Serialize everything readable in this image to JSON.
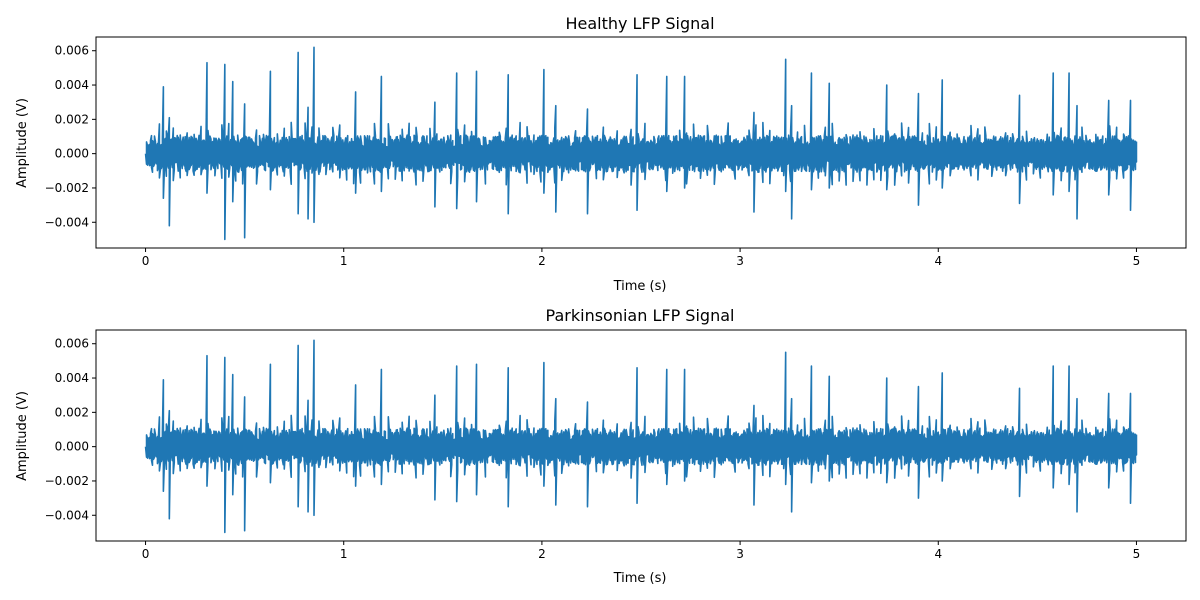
{
  "chart_data": [
    {
      "type": "line",
      "title": "Healthy LFP Signal",
      "xlabel": "Time (s)",
      "ylabel": "Amplitude (V)",
      "xlim": [
        -0.25,
        5.25
      ],
      "ylim": [
        -0.0055,
        0.0068
      ],
      "xticks": [
        0,
        1,
        2,
        3,
        4,
        5
      ],
      "xtick_labels": [
        "0",
        "1",
        "2",
        "3",
        "4",
        "5"
      ],
      "yticks": [
        -0.004,
        -0.002,
        0.0,
        0.002,
        0.004,
        0.006
      ],
      "ytick_labels": [
        "−0.004",
        "−0.002",
        "0.000",
        "0.002",
        "0.004",
        "0.006"
      ],
      "grid": false,
      "color": "#1f77b4",
      "duration_s": 5,
      "baseline_range": [
        -0.0012,
        0.0012
      ],
      "peaks": [
        {
          "t": 0.09,
          "max": 0.0039,
          "min": -0.0026
        },
        {
          "t": 0.12,
          "max": 0.0021,
          "min": -0.0042
        },
        {
          "t": 0.31,
          "max": 0.0053,
          "min": -0.0023
        },
        {
          "t": 0.4,
          "max": 0.0052,
          "min": -0.005
        },
        {
          "t": 0.44,
          "max": 0.0042,
          "min": -0.0028
        },
        {
          "t": 0.5,
          "max": 0.0029,
          "min": -0.0049
        },
        {
          "t": 0.63,
          "max": 0.0048,
          "min": -0.0021
        },
        {
          "t": 0.77,
          "max": 0.0059,
          "min": -0.0035
        },
        {
          "t": 0.82,
          "max": 0.0027,
          "min": -0.0038
        },
        {
          "t": 0.85,
          "max": 0.0062,
          "min": -0.004
        },
        {
          "t": 1.06,
          "max": 0.0036,
          "min": -0.0023
        },
        {
          "t": 1.19,
          "max": 0.0045,
          "min": -0.0022
        },
        {
          "t": 1.46,
          "max": 0.003,
          "min": -0.0031
        },
        {
          "t": 1.57,
          "max": 0.0047,
          "min": -0.0032
        },
        {
          "t": 1.67,
          "max": 0.0048,
          "min": -0.0028
        },
        {
          "t": 1.83,
          "max": 0.0046,
          "min": -0.0035
        },
        {
          "t": 2.01,
          "max": 0.0049,
          "min": -0.0023
        },
        {
          "t": 2.07,
          "max": 0.0028,
          "min": -0.0034
        },
        {
          "t": 2.23,
          "max": 0.0026,
          "min": -0.0035
        },
        {
          "t": 2.48,
          "max": 0.0046,
          "min": -0.0033
        },
        {
          "t": 2.63,
          "max": 0.0045,
          "min": -0.0022
        },
        {
          "t": 2.72,
          "max": 0.0045,
          "min": -0.002
        },
        {
          "t": 3.07,
          "max": 0.0024,
          "min": -0.0034
        },
        {
          "t": 3.23,
          "max": 0.0055,
          "min": -0.0022
        },
        {
          "t": 3.26,
          "max": 0.0028,
          "min": -0.0038
        },
        {
          "t": 3.36,
          "max": 0.0047,
          "min": -0.0021
        },
        {
          "t": 3.45,
          "max": 0.0041,
          "min": -0.002
        },
        {
          "t": 3.74,
          "max": 0.004,
          "min": -0.0021
        },
        {
          "t": 3.9,
          "max": 0.0035,
          "min": -0.003
        },
        {
          "t": 4.02,
          "max": 0.0043,
          "min": -0.002
        },
        {
          "t": 4.41,
          "max": 0.0034,
          "min": -0.0029
        },
        {
          "t": 4.58,
          "max": 0.0047,
          "min": -0.0024
        },
        {
          "t": 4.66,
          "max": 0.0047,
          "min": -0.0022
        },
        {
          "t": 4.7,
          "max": 0.0028,
          "min": -0.0038
        },
        {
          "t": 4.86,
          "max": 0.0031,
          "min": -0.0024
        },
        {
          "t": 4.97,
          "max": 0.0031,
          "min": -0.0033
        }
      ]
    },
    {
      "type": "line",
      "title": "Parkinsonian LFP Signal",
      "xlabel": "Time (s)",
      "ylabel": "Amplitude (V)",
      "xlim": [
        -0.25,
        5.25
      ],
      "ylim": [
        -0.0055,
        0.0068
      ],
      "xticks": [
        0,
        1,
        2,
        3,
        4,
        5
      ],
      "xtick_labels": [
        "0",
        "1",
        "2",
        "3",
        "4",
        "5"
      ],
      "yticks": [
        -0.004,
        -0.002,
        0.0,
        0.002,
        0.004,
        0.006
      ],
      "ytick_labels": [
        "−0.004",
        "−0.002",
        "0.000",
        "0.002",
        "0.004",
        "0.006"
      ],
      "grid": false,
      "color": "#1f77b4",
      "duration_s": 5,
      "baseline_range": [
        -0.0012,
        0.0012
      ],
      "peaks": [
        {
          "t": 0.09,
          "max": 0.0039,
          "min": -0.0026
        },
        {
          "t": 0.12,
          "max": 0.0021,
          "min": -0.0042
        },
        {
          "t": 0.31,
          "max": 0.0053,
          "min": -0.0023
        },
        {
          "t": 0.4,
          "max": 0.0052,
          "min": -0.005
        },
        {
          "t": 0.44,
          "max": 0.0042,
          "min": -0.0028
        },
        {
          "t": 0.5,
          "max": 0.0029,
          "min": -0.0049
        },
        {
          "t": 0.63,
          "max": 0.0048,
          "min": -0.0021
        },
        {
          "t": 0.77,
          "max": 0.0059,
          "min": -0.0035
        },
        {
          "t": 0.82,
          "max": 0.0027,
          "min": -0.0038
        },
        {
          "t": 0.85,
          "max": 0.0062,
          "min": -0.004
        },
        {
          "t": 1.06,
          "max": 0.0036,
          "min": -0.0023
        },
        {
          "t": 1.19,
          "max": 0.0045,
          "min": -0.0022
        },
        {
          "t": 1.46,
          "max": 0.003,
          "min": -0.0031
        },
        {
          "t": 1.57,
          "max": 0.0047,
          "min": -0.0032
        },
        {
          "t": 1.67,
          "max": 0.0048,
          "min": -0.0028
        },
        {
          "t": 1.83,
          "max": 0.0046,
          "min": -0.0035
        },
        {
          "t": 2.01,
          "max": 0.0049,
          "min": -0.0023
        },
        {
          "t": 2.07,
          "max": 0.0028,
          "min": -0.0034
        },
        {
          "t": 2.23,
          "max": 0.0026,
          "min": -0.0035
        },
        {
          "t": 2.48,
          "max": 0.0046,
          "min": -0.0033
        },
        {
          "t": 2.63,
          "max": 0.0045,
          "min": -0.0022
        },
        {
          "t": 2.72,
          "max": 0.0045,
          "min": -0.002
        },
        {
          "t": 3.07,
          "max": 0.0024,
          "min": -0.0034
        },
        {
          "t": 3.23,
          "max": 0.0055,
          "min": -0.0022
        },
        {
          "t": 3.26,
          "max": 0.0028,
          "min": -0.0038
        },
        {
          "t": 3.36,
          "max": 0.0047,
          "min": -0.0021
        },
        {
          "t": 3.45,
          "max": 0.0041,
          "min": -0.002
        },
        {
          "t": 3.74,
          "max": 0.004,
          "min": -0.0021
        },
        {
          "t": 3.9,
          "max": 0.0035,
          "min": -0.003
        },
        {
          "t": 4.02,
          "max": 0.0043,
          "min": -0.002
        },
        {
          "t": 4.41,
          "max": 0.0034,
          "min": -0.0029
        },
        {
          "t": 4.58,
          "max": 0.0047,
          "min": -0.0024
        },
        {
          "t": 4.66,
          "max": 0.0047,
          "min": -0.0022
        },
        {
          "t": 4.7,
          "max": 0.0028,
          "min": -0.0038
        },
        {
          "t": 4.86,
          "max": 0.0031,
          "min": -0.0024
        },
        {
          "t": 4.97,
          "max": 0.0031,
          "min": -0.0033
        }
      ]
    }
  ]
}
